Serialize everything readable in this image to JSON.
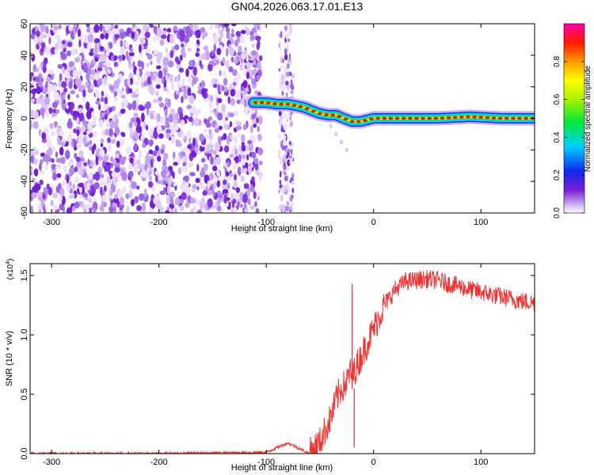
{
  "title": "GN04.2026.063.17.01.E13",
  "chart_data": [
    {
      "type": "heatmap",
      "xlabel": "Height of straight line (km)",
      "ylabel": "Frequency (Hz)",
      "xlim": [
        -320,
        150
      ],
      "ylim": [
        -60,
        60
      ],
      "xticks": [
        -300,
        -200,
        -100,
        0,
        100
      ],
      "yticks": [
        -60,
        -40,
        -20,
        0,
        20,
        40,
        60
      ],
      "colorbar": {
        "label": "Normalized spectral amplitude",
        "range": [
          0,
          1
        ],
        "ticks": [
          0.0,
          0.2,
          0.4,
          0.6,
          0.8
        ],
        "tick_labels": [
          "0.0",
          "0.2",
          "0.4",
          "0.6",
          "0.8"
        ]
      },
      "noise_region_x": [
        -320,
        -105
      ],
      "noise_column_x": [
        -88,
        -75
      ],
      "ridge": {
        "x": [
          -112,
          -100,
          -90,
          -80,
          -72,
          -65,
          -58,
          -50,
          -42,
          -35,
          -28,
          -20,
          -12,
          0,
          30,
          60,
          90,
          120,
          150
        ],
        "freq": [
          10,
          10,
          9,
          9,
          8,
          7,
          5,
          3,
          2,
          2,
          0,
          -2,
          -2,
          0,
          0,
          0,
          1,
          0,
          0
        ]
      },
      "ridge_tail": {
        "x": [
          -40,
          -35,
          -30,
          -25
        ],
        "freq": [
          -5,
          -10,
          -15,
          -20
        ]
      }
    },
    {
      "type": "line",
      "xlabel": "Height of straight line (km)",
      "ylabel": "SNR (10 * v/v)",
      "y_scale_label": "(x10",
      "y_scale_exponent": "4",
      "xlim": [
        -320,
        150
      ],
      "ylim": [
        0,
        1.6
      ],
      "xticks": [
        -300,
        -200,
        -100,
        0,
        100
      ],
      "yticks": [
        0.0,
        0.5,
        1.0,
        1.5
      ],
      "ytick_labels": [
        "0.0",
        "0.5",
        "1.0",
        "1.5"
      ],
      "color": "#ee3333",
      "series": [
        {
          "name": "SNR",
          "x": [
            -320,
            -200,
            -100,
            -90,
            -80,
            -75,
            -60,
            -50,
            -45,
            -40,
            -35,
            -30,
            -25,
            -22,
            -20,
            -18,
            -15,
            -10,
            0,
            10,
            20,
            30,
            40,
            50,
            60,
            70,
            80,
            90,
            100,
            110,
            120,
            130,
            140,
            150
          ],
          "y": [
            0.0,
            0.0,
            0.01,
            0.05,
            0.09,
            0.07,
            0.0,
            0.1,
            0.2,
            0.3,
            0.45,
            0.55,
            0.6,
            0.7,
            0.6,
            0.7,
            0.75,
            0.85,
            1.05,
            1.25,
            1.38,
            1.45,
            1.46,
            1.47,
            1.46,
            1.43,
            1.41,
            1.38,
            1.36,
            1.34,
            1.32,
            1.3,
            1.28,
            1.27
          ]
        }
      ],
      "spikes": [
        {
          "x": -20,
          "y": 1.43
        },
        {
          "x": -18,
          "y": 0.05
        }
      ],
      "noise_amplitude": 0.06
    }
  ]
}
